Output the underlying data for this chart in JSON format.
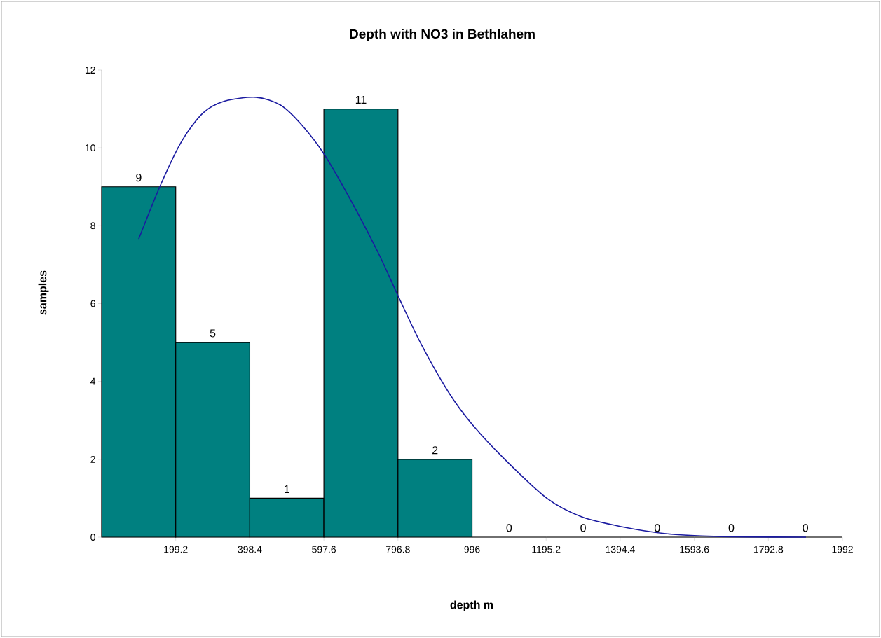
{
  "chart_data": {
    "type": "histogram",
    "title": "Depth with NO3 in Bethlahem",
    "xlabel": "depth m",
    "ylabel": "samples",
    "xlim": [
      0,
      1992
    ],
    "xticks": [
      199.2,
      398.4,
      597.6,
      796.8,
      996,
      1195.2,
      1394.4,
      1593.6,
      1792.8,
      1992
    ],
    "ylim": [
      0,
      12
    ],
    "yticks": [
      0,
      2,
      4,
      6,
      8,
      10,
      12
    ],
    "grid": false,
    "series": [
      {
        "color": "#008080",
        "bins": [
          0,
          199.2,
          398.4,
          597.6,
          796.8,
          996,
          1195.2,
          1394.4,
          1593.6,
          1792.8,
          1992
        ],
        "values": [
          9,
          5,
          1,
          11,
          2,
          0,
          0,
          0,
          0,
          0
        ],
        "value_labels": [
          "9",
          "5",
          "1",
          "11",
          "2",
          "0",
          "0",
          "0",
          "0",
          "0"
        ]
      },
      {
        "type": "line",
        "color": "#1a1aa0",
        "x": [
          99.6,
          160,
          217,
          273,
          330,
          415,
          481,
          537,
          598,
          669,
          744,
          797,
          858,
          933,
          996,
          1084,
          1197,
          1291,
          1397,
          1517,
          1649,
          1894
        ],
        "values": [
          7.66,
          9.08,
          10.2,
          10.9,
          11.2,
          11.3,
          11.1,
          10.6,
          9.84,
          8.67,
          7.3,
          6.2,
          4.98,
          3.72,
          2.9,
          2.0,
          1.0,
          0.52,
          0.27,
          0.09,
          0.02,
          0
        ]
      }
    ]
  }
}
